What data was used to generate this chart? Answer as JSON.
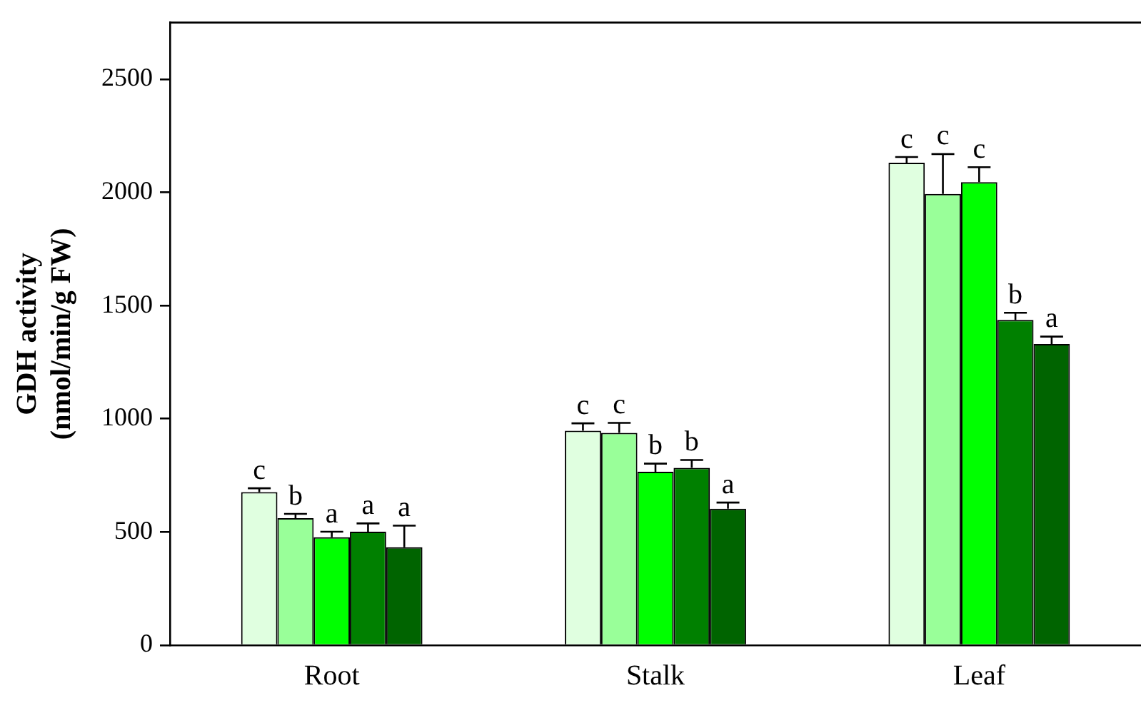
{
  "chart_data": {
    "type": "bar",
    "ylabel": "GDH activity\n(nmol/min/g FW)",
    "categories": [
      "Root",
      "Stalk",
      "Leaf"
    ],
    "ylim": [
      0,
      2750
    ],
    "yticks": [
      0,
      500,
      1000,
      1500,
      2000,
      2500
    ],
    "grid": false,
    "legend": false,
    "series": [
      {
        "color": "#e0ffe0",
        "values": [
          676,
          947,
          2131
        ],
        "errors": [
          [
            676,
            693
          ],
          [
            947,
            980
          ],
          [
            2131,
            2156
          ]
        ],
        "value_labels": [
          "c",
          "c",
          "c"
        ]
      },
      {
        "color": "#99ff99",
        "values": [
          561,
          938,
          1993
        ],
        "errors": [
          [
            561,
            580
          ],
          [
            938,
            982
          ],
          [
            1993,
            2169
          ]
        ],
        "value_labels": [
          "b",
          "c",
          "c"
        ]
      },
      {
        "color": "#00ff00",
        "values": [
          477,
          766,
          2045
        ],
        "errors": [
          [
            477,
            501
          ],
          [
            766,
            802
          ],
          [
            2045,
            2111
          ]
        ],
        "value_labels": [
          "a",
          "b",
          "c"
        ]
      },
      {
        "color": "#008000",
        "values": [
          501,
          783,
          1437
        ],
        "errors": [
          [
            501,
            538
          ],
          [
            783,
            818
          ],
          [
            1437,
            1468
          ]
        ],
        "value_labels": [
          "a",
          "b",
          "b"
        ]
      },
      {
        "color": "#006400",
        "values": [
          433,
          603,
          1330
        ],
        "errors": [
          [
            433,
            528
          ],
          [
            603,
            630
          ],
          [
            1330,
            1363
          ]
        ],
        "value_labels": [
          "a",
          "a",
          "a"
        ]
      }
    ]
  }
}
